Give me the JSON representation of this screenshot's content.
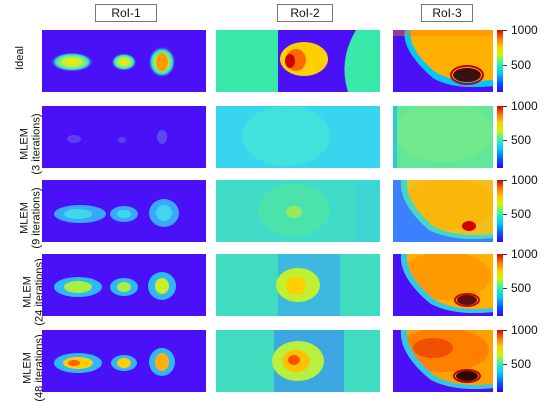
{
  "columns": [
    "RoI-1",
    "RoI-2",
    "RoI-3"
  ],
  "rows": [
    {
      "line1": "Ideal",
      "line2": ""
    },
    {
      "line1": "MLEM",
      "line2": "(3 iterations)"
    },
    {
      "line1": "MLEM",
      "line2": "(9 iterations)"
    },
    {
      "line1": "MLEM",
      "line2": "(24 iterations)"
    },
    {
      "line1": "MLEM",
      "line2": "(48 iterations)"
    }
  ],
  "colorbar": {
    "max_label": "1000",
    "mid_label": "500"
  },
  "colors": {
    "low": "#3a00ff",
    "mid": "#2ef7a0",
    "high": "#d40000"
  }
}
